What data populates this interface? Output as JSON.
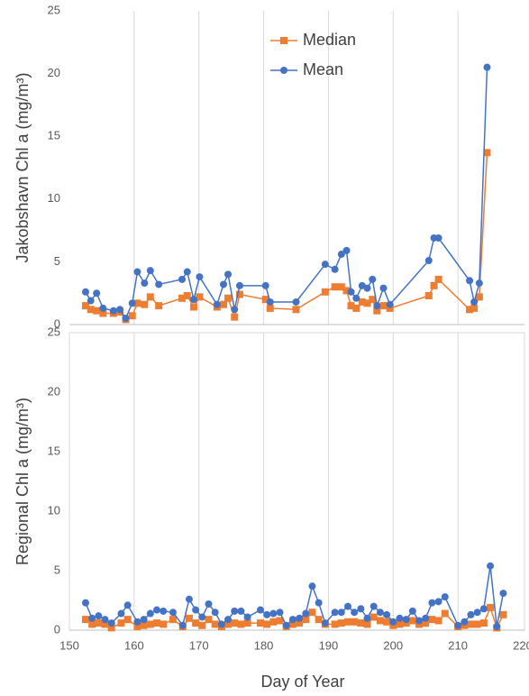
{
  "chart_data": [
    {
      "type": "line",
      "y_label": "Jakobshavn Chl a (mg/m³)",
      "xlim": [
        150,
        220
      ],
      "ylim": [
        0,
        25
      ],
      "yticks": [
        0,
        5,
        10,
        15,
        20,
        25
      ],
      "legend": "top",
      "x": [
        152.5,
        153.3,
        154.2,
        155.2,
        156.8,
        157.8,
        158.7,
        159.7,
        160.5,
        161.6,
        162.5,
        163.8,
        167.4,
        168.2,
        169.2,
        170.1,
        172.8,
        173.8,
        174.5,
        175.5,
        176.3,
        180.3,
        181.0,
        185.0,
        189.5,
        191.0,
        192.0,
        192.8,
        193.5,
        194.3,
        195.2,
        196.0,
        196.8,
        197.5,
        198.5,
        199.5,
        205.5,
        206.3,
        207.0,
        211.8,
        212.5,
        213.3,
        214.5
      ],
      "series": [
        {
          "name": "Median",
          "color": "#ed7d31",
          "marker": "square",
          "values": [
            1.5,
            1.2,
            1.1,
            0.9,
            0.9,
            1.0,
            0.4,
            0.7,
            1.7,
            1.6,
            2.2,
            1.5,
            2.1,
            2.3,
            1.4,
            2.2,
            1.4,
            1.6,
            2.1,
            0.6,
            2.4,
            2.0,
            1.3,
            1.2,
            2.6,
            3.0,
            3.0,
            2.7,
            1.5,
            1.3,
            1.8,
            1.7,
            2.0,
            1.1,
            1.5,
            1.3,
            2.3,
            3.1,
            3.6,
            1.2,
            1.3,
            2.2,
            13.7
          ]
        },
        {
          "name": "Mean",
          "color": "#4472c4",
          "marker": "circle",
          "values": [
            2.6,
            1.9,
            2.5,
            1.3,
            1.1,
            1.2,
            0.5,
            1.7,
            4.2,
            3.3,
            4.3,
            3.2,
            3.6,
            4.2,
            2.0,
            3.8,
            1.6,
            3.2,
            4.0,
            1.2,
            3.1,
            3.1,
            1.8,
            1.8,
            4.8,
            4.4,
            5.6,
            5.9,
            2.6,
            2.1,
            3.1,
            2.9,
            3.6,
            1.5,
            2.9,
            1.6,
            5.1,
            6.9,
            6.9,
            3.5,
            1.8,
            3.3,
            20.5
          ]
        }
      ]
    },
    {
      "type": "line",
      "y_label": "Regional Chl a (mg/m³)",
      "x_label": "Day of Year",
      "xlim": [
        150,
        220
      ],
      "xticks": [
        150,
        160,
        170,
        180,
        190,
        200,
        210,
        220
      ],
      "ylim": [
        0,
        25
      ],
      "yticks": [
        0,
        5,
        10,
        15,
        20,
        25
      ],
      "x": [
        152.5,
        153.5,
        154.5,
        155.5,
        156.5,
        158,
        159,
        160.5,
        161.5,
        162.5,
        163.5,
        164.5,
        166,
        167.5,
        168.5,
        169.5,
        170.5,
        171.5,
        172.5,
        173.5,
        174.5,
        175.5,
        176.5,
        177.5,
        179.5,
        180.5,
        181.5,
        182.5,
        183.5,
        184.5,
        185.5,
        186.5,
        187.5,
        188.5,
        189.5,
        191,
        192,
        193,
        194,
        195,
        196,
        197,
        198,
        199,
        200,
        201,
        202,
        203,
        204,
        205,
        206,
        207,
        208,
        210,
        211,
        212,
        213,
        214,
        215,
        216,
        217
      ],
      "series": [
        {
          "name": "Median",
          "color": "#ed7d31",
          "marker": "square",
          "values": [
            0.9,
            0.5,
            0.6,
            0.5,
            0.2,
            0.6,
            0.9,
            0.3,
            0.4,
            0.5,
            0.6,
            0.5,
            0.9,
            0.3,
            1.0,
            0.6,
            0.4,
            0.9,
            0.5,
            0.3,
            0.5,
            0.6,
            0.5,
            0.6,
            0.6,
            0.5,
            0.7,
            0.8,
            0.3,
            0.5,
            0.6,
            0.9,
            1.5,
            0.9,
            0.5,
            0.5,
            0.6,
            0.7,
            0.7,
            0.6,
            0.5,
            1.1,
            0.8,
            0.7,
            0.4,
            0.5,
            0.6,
            0.8,
            0.5,
            0.6,
            0.9,
            0.8,
            1.4,
            0.3,
            0.4,
            0.5,
            0.5,
            0.6,
            1.9,
            0.2,
            1.3
          ]
        },
        {
          "name": "Mean",
          "color": "#4472c4",
          "marker": "circle",
          "values": [
            2.3,
            1.0,
            1.2,
            0.9,
            0.6,
            1.4,
            2.1,
            0.7,
            0.9,
            1.4,
            1.7,
            1.6,
            1.5,
            0.4,
            2.6,
            1.7,
            1.1,
            2.2,
            1.5,
            0.5,
            0.9,
            1.6,
            1.6,
            1.1,
            1.7,
            1.3,
            1.4,
            1.5,
            0.4,
            0.9,
            1.0,
            1.4,
            3.7,
            2.3,
            0.6,
            1.5,
            1.5,
            2.0,
            1.5,
            1.8,
            1.0,
            2.0,
            1.5,
            1.3,
            0.7,
            1.0,
            0.9,
            1.6,
            0.8,
            1.0,
            2.3,
            2.4,
            2.8,
            0.4,
            0.7,
            1.3,
            1.5,
            1.8,
            5.4,
            0.3,
            3.1
          ]
        }
      ]
    }
  ]
}
